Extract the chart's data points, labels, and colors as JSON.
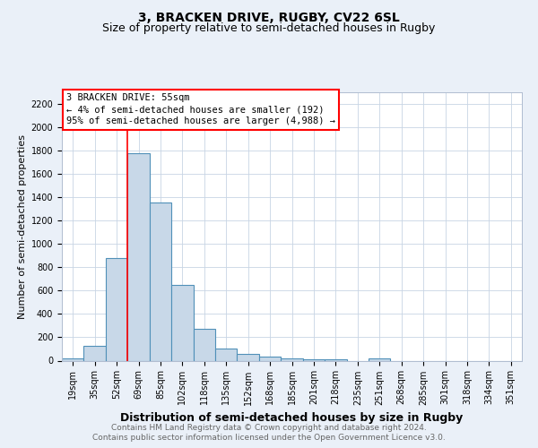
{
  "title": "3, BRACKEN DRIVE, RUGBY, CV22 6SL",
  "subtitle": "Size of property relative to semi-detached houses in Rugby",
  "xlabel": "Distribution of semi-detached houses by size in Rugby",
  "ylabel": "Number of semi-detached properties",
  "categories": [
    "19sqm",
    "35sqm",
    "52sqm",
    "69sqm",
    "85sqm",
    "102sqm",
    "118sqm",
    "135sqm",
    "152sqm",
    "168sqm",
    "185sqm",
    "201sqm",
    "218sqm",
    "235sqm",
    "251sqm",
    "268sqm",
    "285sqm",
    "301sqm",
    "318sqm",
    "334sqm",
    "351sqm"
  ],
  "values": [
    20,
    125,
    875,
    1775,
    1350,
    645,
    275,
    105,
    55,
    35,
    20,
    15,
    15,
    0,
    20,
    0,
    0,
    0,
    0,
    0,
    0
  ],
  "bar_color": "#c8d8e8",
  "bar_edge_color": "#5090b8",
  "bar_linewidth": 0.8,
  "red_line_x": 2.5,
  "annotation_line1": "3 BRACKEN DRIVE: 55sqm",
  "annotation_line2": "← 4% of semi-detached houses are smaller (192)",
  "annotation_line3": "95% of semi-detached houses are larger (4,988) →",
  "ylim": [
    0,
    2300
  ],
  "yticks": [
    0,
    200,
    400,
    600,
    800,
    1000,
    1200,
    1400,
    1600,
    1800,
    2000,
    2200
  ],
  "background_color": "#eaf0f8",
  "plot_bg_color": "#ffffff",
  "grid_color": "#c8d4e4",
  "footer_line1": "Contains HM Land Registry data © Crown copyright and database right 2024.",
  "footer_line2": "Contains public sector information licensed under the Open Government Licence v3.0.",
  "title_fontsize": 10,
  "subtitle_fontsize": 9,
  "xlabel_fontsize": 9,
  "ylabel_fontsize": 8,
  "tick_fontsize": 7,
  "annotation_fontsize": 7.5,
  "footer_fontsize": 6.5
}
